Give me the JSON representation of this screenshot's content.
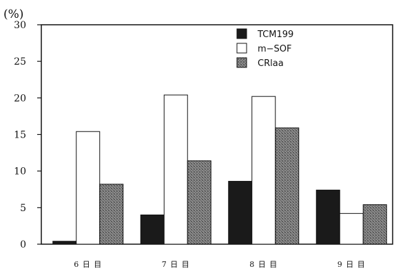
{
  "chart_data": {
    "type": "bar",
    "unit_label": "(%)",
    "categories": [
      "6 日 目",
      "7 日 目",
      "8 日 目",
      "9 日 目"
    ],
    "series": [
      {
        "name": "TCM199",
        "values": [
          0.4,
          4.0,
          8.6,
          7.4
        ],
        "color": "#1a1a1a",
        "pattern": "solid"
      },
      {
        "name": "m−SOF",
        "values": [
          15.4,
          20.4,
          20.2,
          4.2
        ],
        "color": "#ffffff",
        "pattern": "outline"
      },
      {
        "name": "CRlaa",
        "values": [
          8.2,
          11.4,
          15.9,
          5.4
        ],
        "color": "#6e6e6e",
        "pattern": "stipple"
      }
    ],
    "yticks": [
      "0",
      "5",
      "10",
      "15",
      "20",
      "25",
      "30"
    ],
    "ylim": [
      0,
      30
    ],
    "grid": false,
    "legend_position": "top-right"
  }
}
